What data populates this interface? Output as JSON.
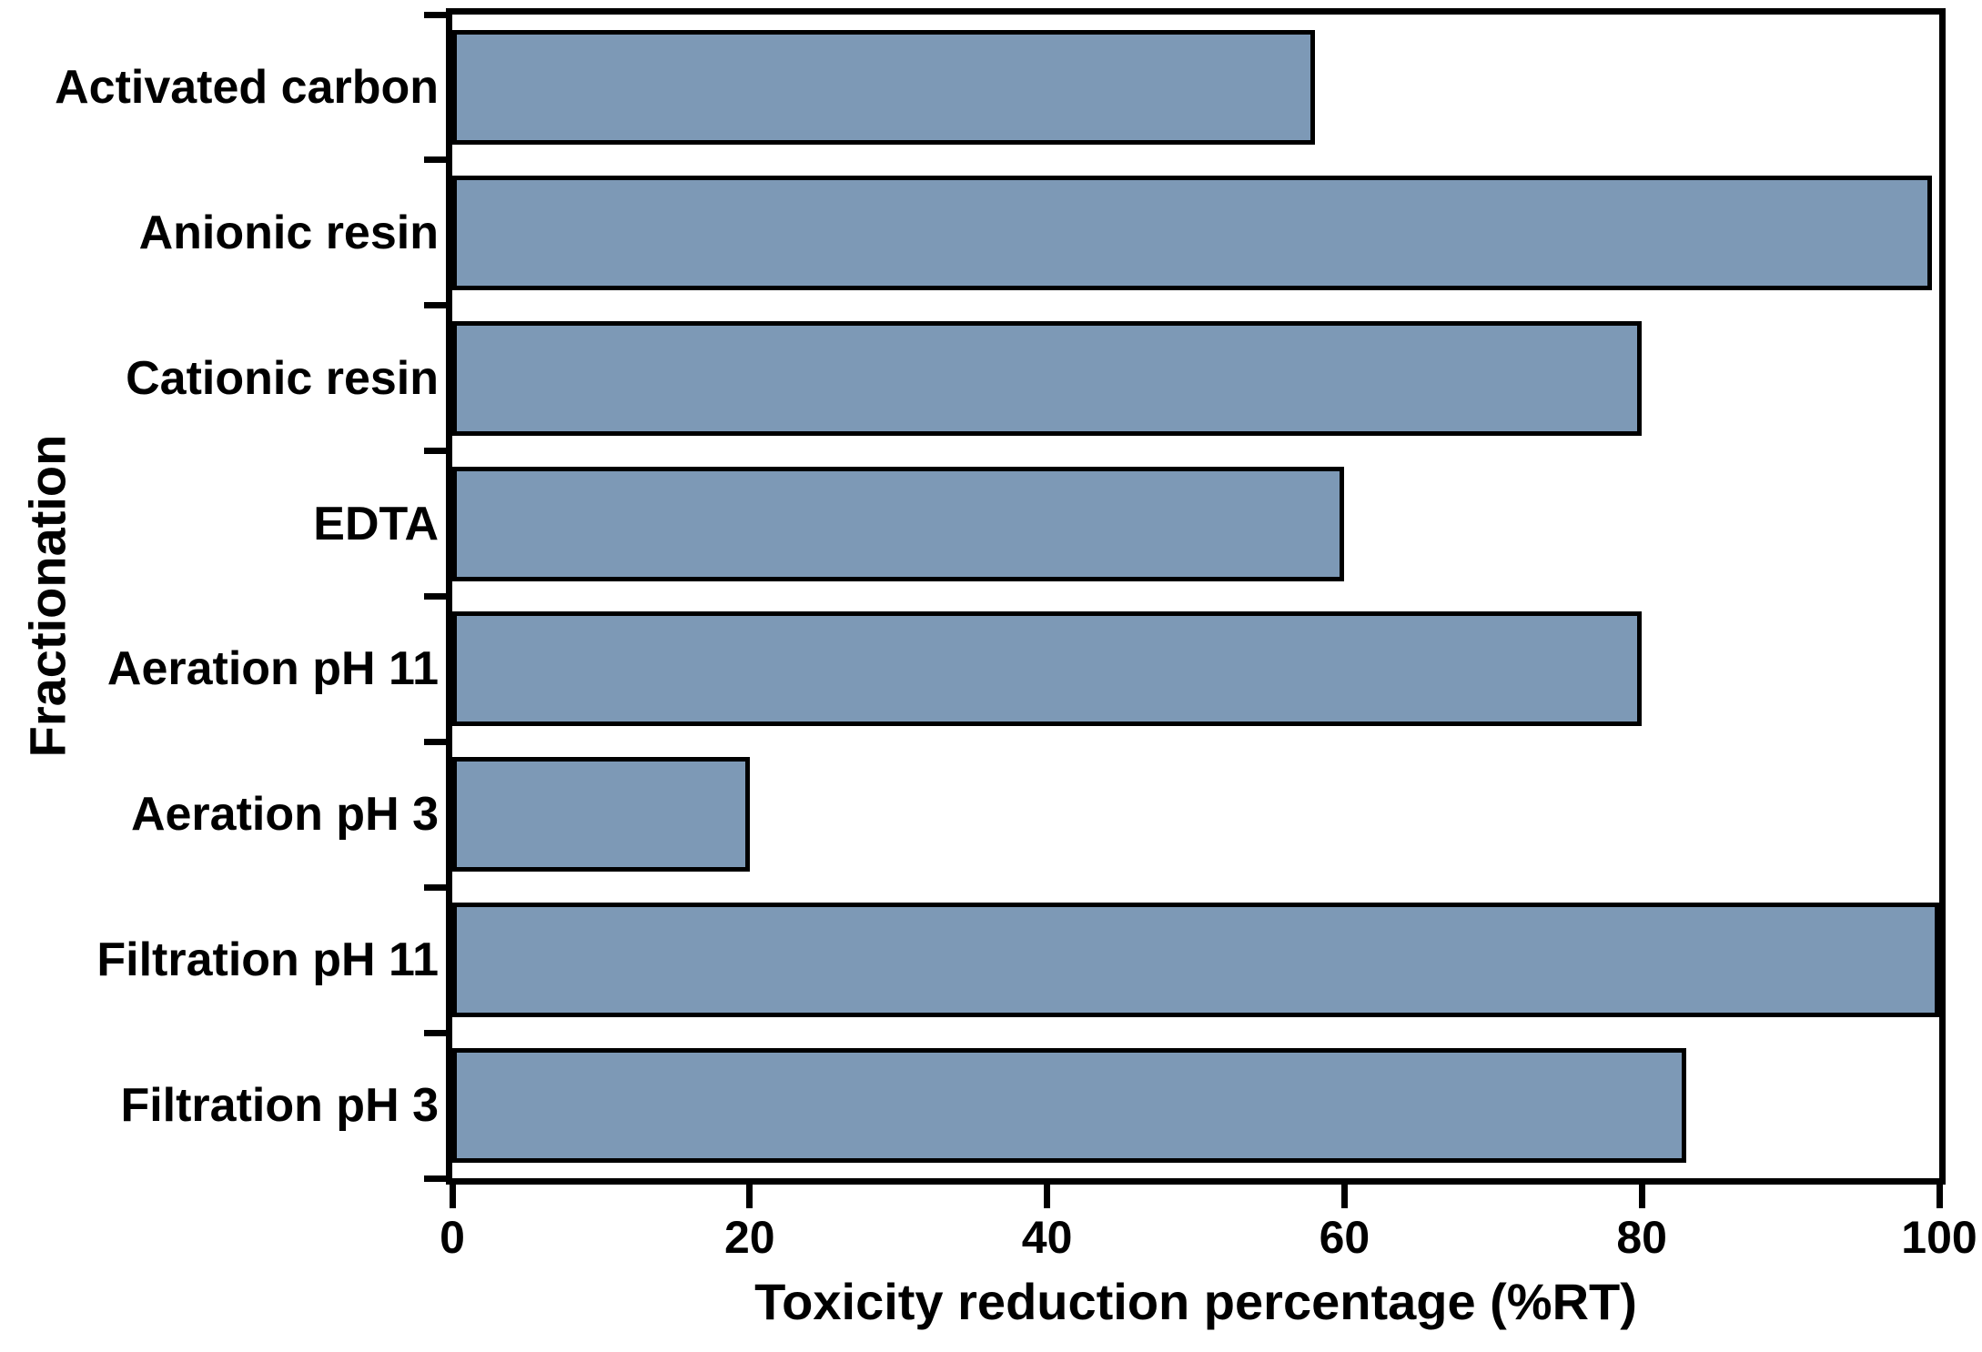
{
  "chart_data": {
    "type": "bar",
    "orientation": "horizontal",
    "title": "",
    "xlabel": "Toxicity reduction percentage (%RT)",
    "ylabel": "Fractionation",
    "categories": [
      "Activated carbon",
      "Anionic resin",
      "Cationic resin",
      "EDTA",
      "Aeration pH 11",
      "Aeration pH 3",
      "Filtration pH 11",
      "Filtration pH 3"
    ],
    "values": [
      58,
      99.5,
      80,
      60,
      80,
      20,
      100,
      83
    ],
    "xlim": [
      0,
      100
    ],
    "xticks": [
      0,
      20,
      40,
      60,
      80,
      100
    ],
    "grid": false,
    "legend": false,
    "bar_fill_color": "#7d99b6",
    "bar_border_color": "#000000",
    "axis_color": "#000000",
    "background_color": "#ffffff"
  }
}
